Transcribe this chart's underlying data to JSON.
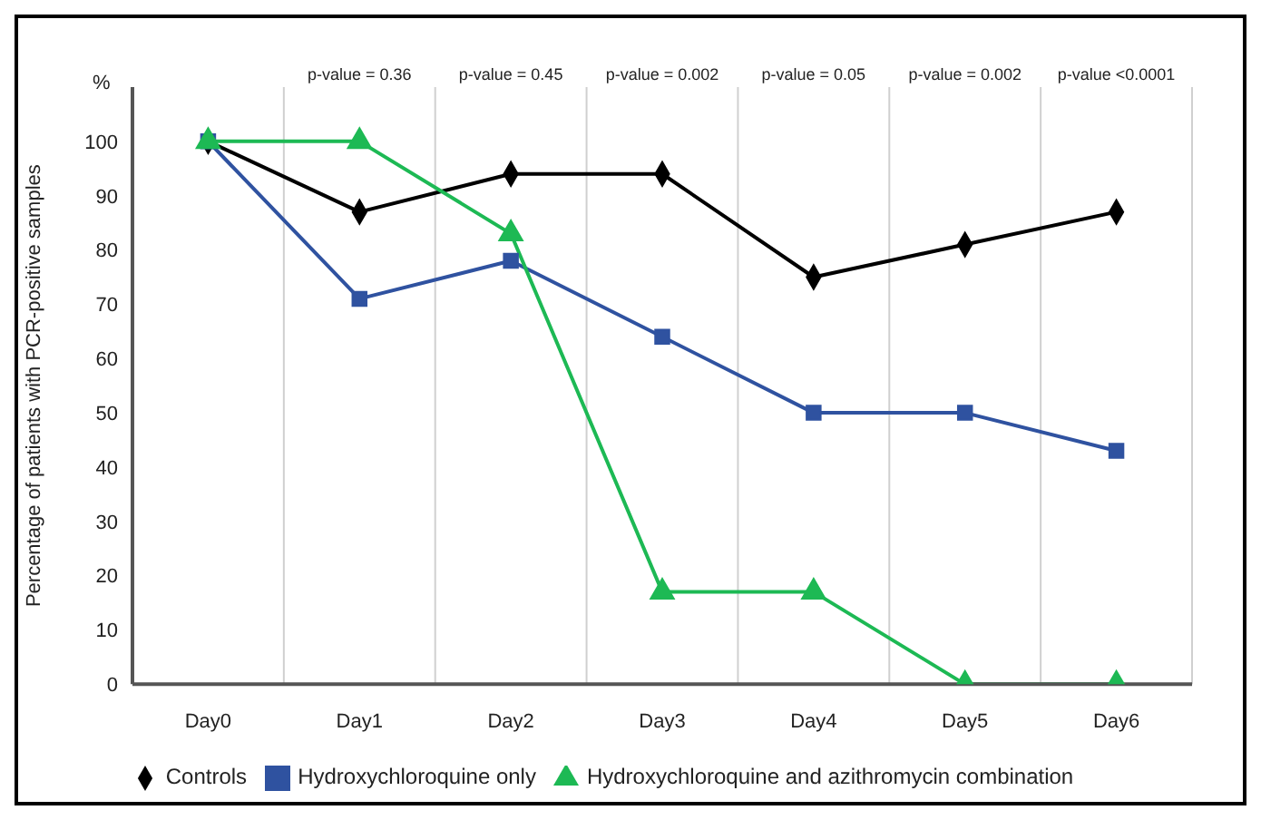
{
  "chart_data": {
    "type": "line",
    "ylabel": "Percentage of patients with PCR-positive samples",
    "categories": [
      "Day0",
      "Day1",
      "Day2",
      "Day3",
      "Day4",
      "Day5",
      "Day6"
    ],
    "series": [
      {
        "name": "Controls",
        "color": "#000000",
        "marker": "diamond",
        "values": [
          100,
          87,
          94,
          94,
          75,
          81,
          87
        ]
      },
      {
        "name": "Hydroxychloroquine only",
        "color": "#2f52a0",
        "marker": "square",
        "values": [
          100,
          71,
          78,
          64,
          50,
          50,
          43
        ]
      },
      {
        "name": "Hydroxychloroquine and azithromycin combination",
        "color": "#1db954",
        "marker": "triangle",
        "values": [
          100,
          100,
          83,
          17,
          17,
          0,
          0
        ]
      }
    ],
    "ylim": [
      0,
      110
    ],
    "yticks": [
      0,
      10,
      20,
      30,
      40,
      50,
      60,
      70,
      80,
      90,
      100
    ],
    "grid": "x",
    "legend": "bottom",
    "line_style": "solid",
    "annotations": [
      "%",
      "p-value = 0.36",
      "p-value = 0.45",
      "p-value = 0.002",
      "p-value = 0.05",
      "p-value = 0.002",
      "p-value <0.0001"
    ]
  }
}
